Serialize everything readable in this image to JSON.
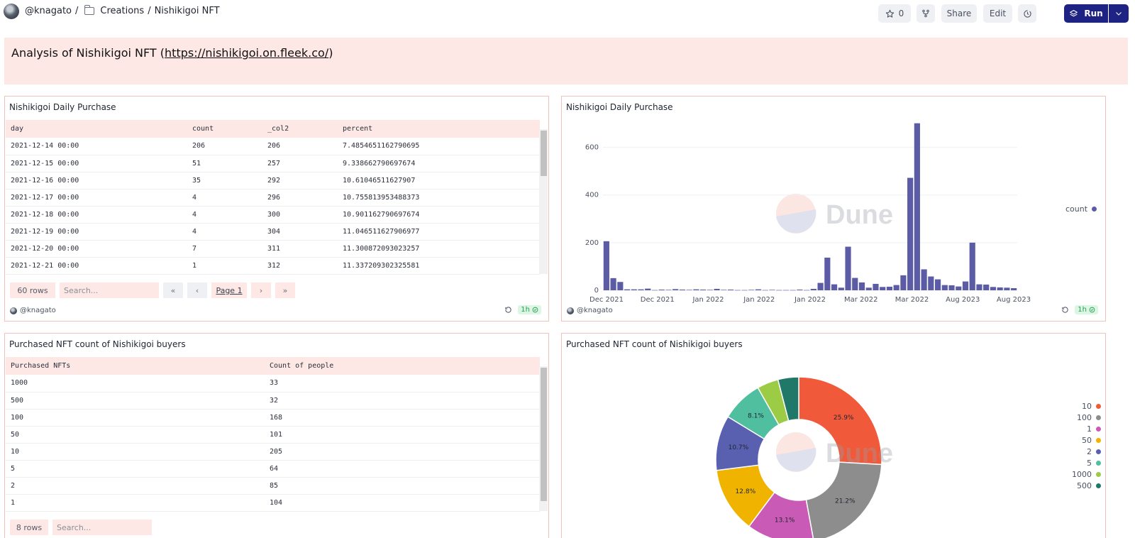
{
  "topbar": {
    "user": "@knagato",
    "sep1": "/",
    "folder": "Creations",
    "sep2": "/",
    "page": "Nishikigoi NFT",
    "star_count": "0",
    "share_label": "Share",
    "edit_label": "Edit",
    "run_label": "Run"
  },
  "header": {
    "text": "Analysis of Nishikigoi NFT (",
    "link": "https://nishikigoi.on.fleek.co/",
    "close": ")"
  },
  "panel1": {
    "title": "Nishikigoi Daily Purchase",
    "columns": [
      "day",
      "count",
      "_col2",
      "percent"
    ],
    "rows": [
      [
        "2021-12-14 00:00",
        "206",
        "206",
        "7.4854651162790695"
      ],
      [
        "2021-12-15 00:00",
        "51",
        "257",
        "9.338662790697674"
      ],
      [
        "2021-12-16 00:00",
        "35",
        "292",
        "10.61046511627907"
      ],
      [
        "2021-12-17 00:00",
        "4",
        "296",
        "10.755813953488373"
      ],
      [
        "2021-12-18 00:00",
        "4",
        "300",
        "10.901162790697674"
      ],
      [
        "2021-12-19 00:00",
        "4",
        "304",
        "11.046511627906977"
      ],
      [
        "2021-12-20 00:00",
        "7",
        "311",
        "11.300872093023257"
      ],
      [
        "2021-12-21 00:00",
        "1",
        "312",
        "11.337209302325581"
      ]
    ],
    "row_count": "60 rows",
    "search_placeholder": "Search...",
    "page_label": "Page 1",
    "owner": "@knagato",
    "freshness": "1h"
  },
  "panel2": {
    "title": "Nishikigoi Daily Purchase",
    "legend": "count",
    "owner": "@knagato",
    "freshness": "1h"
  },
  "panel3": {
    "title": "Purchased NFT count of Nishikigoi buyers",
    "columns": [
      "Purchased NFTs",
      "Count of people"
    ],
    "rows": [
      [
        "1000",
        "33"
      ],
      [
        "500",
        "32"
      ],
      [
        "100",
        "168"
      ],
      [
        "50",
        "101"
      ],
      [
        "10",
        "205"
      ],
      [
        "5",
        "64"
      ],
      [
        "2",
        "85"
      ],
      [
        "1",
        "104"
      ]
    ],
    "row_count": "8 rows",
    "search_placeholder": "Search..."
  },
  "panel4": {
    "title": "Purchased NFT count of Nishikigoi buyers"
  },
  "watermark": "Dune",
  "colors": {
    "accent": "#1e2283",
    "bar": "#5c5ba6",
    "panel_border": "#f4c2bc",
    "panel_fill": "#fde8e6"
  },
  "chart_data": [
    {
      "type": "bar",
      "title": "Nishikigoi Daily Purchase",
      "x_tick_labels": [
        "Dec 2021",
        "Dec 2021",
        "Jan 2022",
        "Jan 2022",
        "Jan 2022",
        "Mar 2022",
        "Mar 2022",
        "Aug 2023",
        "Aug 2023"
      ],
      "yticks": [
        0,
        200,
        400,
        600
      ],
      "ylim": [
        0,
        700
      ],
      "grid": true,
      "legend_position": "right",
      "series": [
        {
          "name": "count",
          "color": "#5c5ba6",
          "values": [
            206,
            51,
            35,
            4,
            4,
            4,
            7,
            1,
            3,
            2,
            5,
            3,
            2,
            4,
            3,
            2,
            6,
            2,
            3,
            1,
            1,
            2,
            4,
            1,
            2,
            1,
            1,
            1,
            3,
            1,
            6,
            31,
            137,
            25,
            11,
            183,
            52,
            33,
            11,
            27,
            14,
            15,
            22,
            63,
            472,
            701,
            88,
            58,
            46,
            22,
            21,
            16,
            37,
            200,
            25,
            24,
            14,
            12,
            11,
            9
          ]
        }
      ]
    },
    {
      "type": "pie",
      "title": "Purchased NFT count of Nishikigoi buyers",
      "categories": [
        "10",
        "100",
        "1",
        "50",
        "2",
        "5",
        "1000",
        "500"
      ],
      "values": [
        205,
        168,
        104,
        101,
        85,
        64,
        33,
        32
      ],
      "slice_labels": [
        "25.9%",
        "21.2%",
        "13.1%",
        "12.8%",
        "10.7%",
        "8.1%",
        "",
        ""
      ],
      "colors": [
        "#f05a3a",
        "#8d8d8d",
        "#c95bb6",
        "#f0b400",
        "#5a60b0",
        "#4fbfa0",
        "#9ccc45",
        "#1f7868"
      ],
      "legend_position": "right"
    }
  ]
}
